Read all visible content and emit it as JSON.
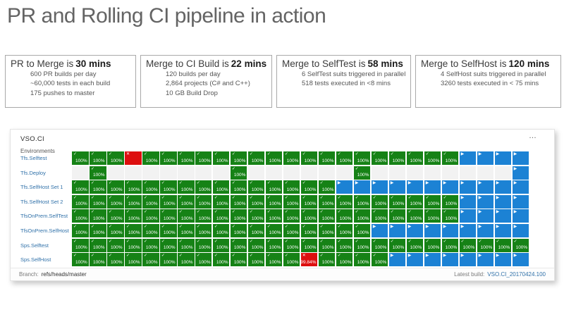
{
  "title": "PR and Rolling CI pipeline in action",
  "stat_boxes": [
    {
      "heading_prefix": "PR to Merge is",
      "heading_value": "30 mins",
      "lines": [
        "600 PR builds per day",
        "~60,000 tests in each build",
        "175 pushes to master"
      ]
    },
    {
      "heading_prefix": "Merge to CI Build is",
      "heading_value": "22 mins",
      "lines": [
        "120 builds per day",
        "2,864 projects (C# and C++)",
        "10 GB Build Drop"
      ]
    },
    {
      "heading_prefix": "Merge to SelfTest is",
      "heading_value": "58 mins",
      "lines": [
        "6 SelfTest suits triggered in parallel",
        "518 tests executed in <8 mins"
      ]
    },
    {
      "heading_prefix": "Merge to SelfHost is",
      "heading_value": "120 mins",
      "lines": [
        "4 SelfHost suits triggered in parallel",
        "3260 tests executed in < 75 mins"
      ]
    }
  ],
  "dashboard": {
    "title": "VSO.CI",
    "menu_icon": "…",
    "environments_label": "Environments",
    "columns": 26,
    "cell_glyphs": {
      "success": "✓",
      "failed": "✕",
      "running": "▶"
    },
    "cell_legend": {
      "G": {
        "type": "success",
        "text": "100%",
        "icon_name": "checkmark-icon"
      },
      "F": {
        "type": "failed",
        "text": "",
        "icon_name": "x-icon"
      },
      "X": {
        "type": "failed",
        "text": "99.84%",
        "icon_name": "x-icon"
      },
      "B": {
        "type": "running",
        "text": "",
        "icon_name": "play-icon"
      },
      "E": {
        "type": "empty",
        "text": "",
        "icon_name": ""
      }
    },
    "rows": [
      {
        "label": "Tfs.Selftest",
        "cells": "GGGFGGGGGGGGGGGGGGGGGGBBBB"
      },
      {
        "label": "Tfs.Deploy",
        "cells": "EGEEEEEEEGEEEEEEGEEEEEEEEB"
      },
      {
        "label": "Tfs.SelfHost Set 1",
        "cells": "GGGGGGGGGGGGGGGBBBBBBBBBBB"
      },
      {
        "label": "Tfs.SelfHost Set 2",
        "cells": "GGGGGGGGGGGGGGGGGGGGGGBBBB"
      },
      {
        "label": "TfsOnPrem.SelfTest",
        "cells": "GGGGGGGGGGGGGGGGGGGGGGBBBB"
      },
      {
        "label": "TfsOnPrem.SelfHost",
        "cells": "GGGGGGGGGGGGGGGGGBBBBBBBBB"
      },
      {
        "label": "Sps.Selftest",
        "cells": "GGGGGGGGGGGGGGGGGGGGGGGGGG"
      },
      {
        "label": "Sps.SelfHost",
        "cells": "GGGGGGGGGGGGGXGGGGBBBBBBBB"
      }
    ],
    "footer": {
      "branch_label": "Branch:",
      "branch_value": "refs/heads/master",
      "latest_build_label": "Latest build:",
      "latest_build_value": "VSO.CI_20170424.100"
    }
  },
  "colors": {
    "success_green": "#168216",
    "failed_red": "#dd0f0f",
    "running_blue": "#1c82d4",
    "link_blue": "#3071a9",
    "title_gray": "#646464"
  }
}
